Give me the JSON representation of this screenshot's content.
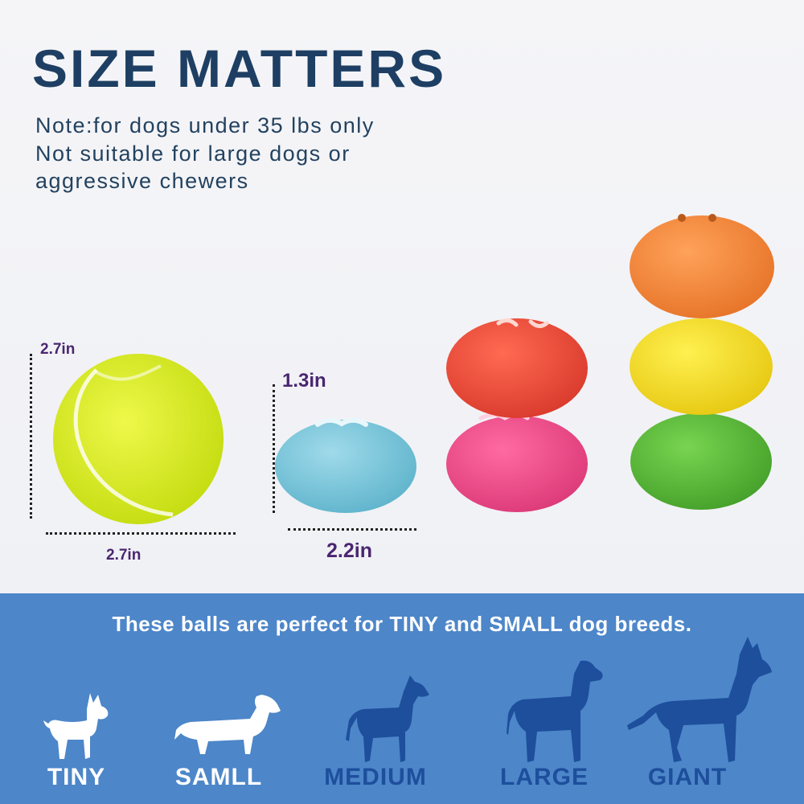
{
  "header": {
    "title": "SIZE MATTERS",
    "note_lines": [
      "Note:for dogs under 35 lbs only",
      "Not suitable for large dogs or",
      "aggressive chewers"
    ]
  },
  "comparison": {
    "tennis_ball": {
      "height_label": "2.7in",
      "width_label": "2.7in"
    },
    "toy_ball": {
      "height_label": "1.3in",
      "width_label": "2.2in"
    },
    "ball_colors": {
      "tennis": "#d8ef1c",
      "blue": "#7ccbdc",
      "red": "#f04f3c",
      "pink": "#f2508e",
      "orange": "#f78a3a",
      "yellow": "#f8df1e",
      "green": "#5dbe3a"
    }
  },
  "breeds": {
    "tagline": "These balls are perfect for TINY and SMALL dog breeds.",
    "sizes": [
      {
        "label": "TINY",
        "suitable": true,
        "icon": "tiny-dog-icon"
      },
      {
        "label": "SAMLL",
        "suitable": true,
        "icon": "dachshund-icon"
      },
      {
        "label": "MEDIUM",
        "suitable": false,
        "icon": "medium-dog-icon"
      },
      {
        "label": "LARGE",
        "suitable": false,
        "icon": "large-dog-icon"
      },
      {
        "label": "GIANT",
        "suitable": false,
        "icon": "giant-dog-icon"
      }
    ],
    "colors": {
      "background": "#4d86c9",
      "suitable": "#ffffff",
      "unsuitable": "#1d4f9c"
    }
  }
}
